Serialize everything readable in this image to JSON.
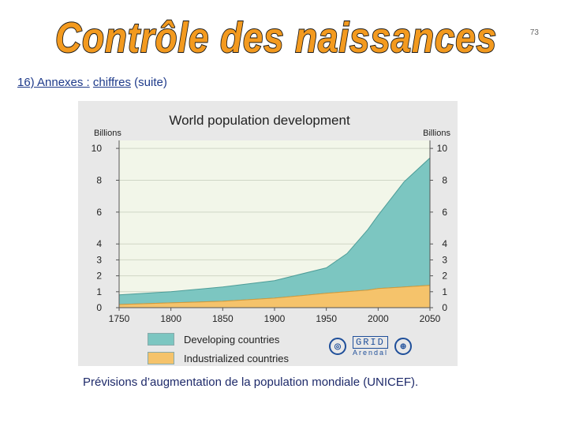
{
  "page": {
    "number": "73",
    "title": "Contrôle des naissances",
    "subtitle_prefix": "16) Annexes :",
    "subtitle_link": "chiffres",
    "subtitle_suffix": "(suite)",
    "caption": "Prévisions d’augmentation de la population mondiale (UNICEF).",
    "colors": {
      "title_fill": "#f39a1f",
      "title_stroke": "#1a1a1a",
      "subtitle": "#1e3a8a",
      "developing": "#7cc6c1",
      "industrialized": "#f5c36b",
      "chart_bg": "#e8e8e8",
      "plot_bg": "#f2f6e9"
    },
    "logos": {
      "grid_text": "GRID",
      "arendal_text": "Arendal"
    }
  },
  "chart_data": {
    "type": "area",
    "title": "World population development",
    "ylabel_left": "Billions",
    "ylabel_right": "Billions",
    "x": [
      1750,
      1800,
      1850,
      1900,
      1950,
      1970,
      1990,
      2000,
      2025,
      2050
    ],
    "xticks": [
      1750,
      1800,
      1850,
      1900,
      1950,
      2000,
      2050
    ],
    "xlim": [
      1750,
      2050
    ],
    "ylim": [
      0,
      10.5
    ],
    "yticks_left": [
      0,
      1,
      2,
      3,
      4,
      6,
      8,
      10
    ],
    "yticks_right": [
      0,
      1,
      2,
      3,
      4,
      6,
      8,
      10
    ],
    "stacked": true,
    "series": [
      {
        "name": "Industrialized countries",
        "values": [
          0.2,
          0.3,
          0.4,
          0.6,
          0.9,
          1.0,
          1.1,
          1.2,
          1.3,
          1.4
        ]
      },
      {
        "name": "Developing countries",
        "values": [
          0.6,
          0.7,
          0.9,
          1.1,
          1.6,
          2.4,
          3.8,
          4.6,
          6.6,
          8.0
        ]
      }
    ],
    "legend": [
      "Developing countries",
      "Industrialized countries"
    ],
    "legend_position": "bottom-left"
  }
}
